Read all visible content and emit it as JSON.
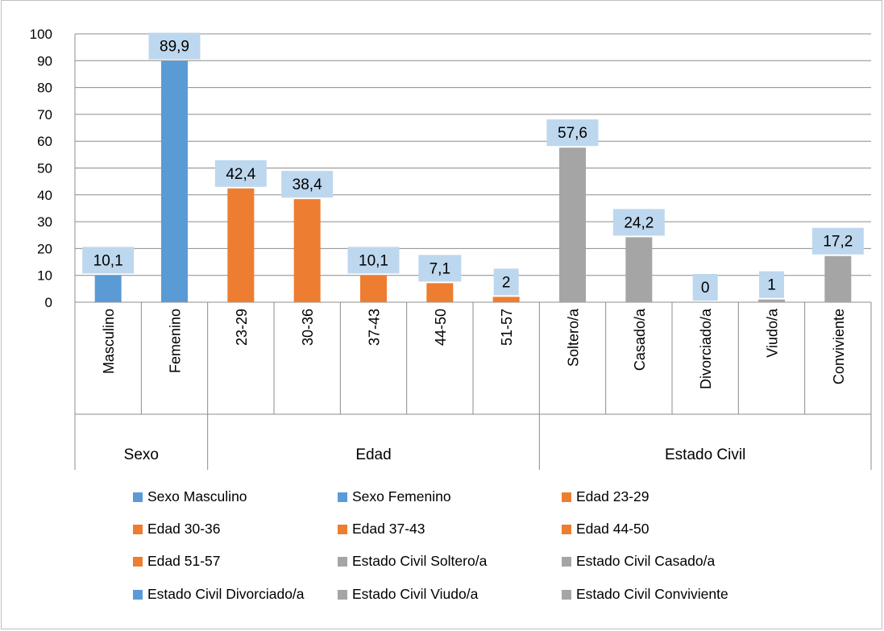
{
  "colors": {
    "blue": "#5b9bd5",
    "orange": "#ed7d31",
    "gray": "#a5a5a5",
    "label_bg": "#bdd7ee",
    "grid": "#8c8c8c"
  },
  "chart_data": {
    "type": "bar",
    "ylim": [
      0,
      100
    ],
    "yticks": [
      0,
      10,
      20,
      30,
      40,
      50,
      60,
      70,
      80,
      90,
      100
    ],
    "grid": true,
    "legend_position": "bottom",
    "groups": [
      {
        "name": "Sexo",
        "categories": [
          "Masculino",
          "Femenino"
        ],
        "values": [
          10.1,
          89.9
        ],
        "labels": [
          "10,1",
          "89,9"
        ],
        "color": "blue"
      },
      {
        "name": "Edad",
        "categories": [
          "23-29",
          "30-36",
          "37-43",
          "44-50",
          "51-57"
        ],
        "values": [
          42.4,
          38.4,
          10.1,
          7.1,
          2
        ],
        "labels": [
          "42,4",
          "38,4",
          "10,1",
          "7,1",
          "2"
        ],
        "color": "orange"
      },
      {
        "name": "Estado Civil",
        "categories": [
          "Soltero/a",
          "Casado/a",
          "Divorciado/a",
          "Viudo/a",
          "Conviviente"
        ],
        "values": [
          57.6,
          24.2,
          0,
          1,
          17.2
        ],
        "labels": [
          "57,6",
          "24,2",
          "0",
          "1",
          "17,2"
        ],
        "color": "gray"
      }
    ],
    "legend": [
      {
        "label": "Sexo Masculino",
        "color": "blue"
      },
      {
        "label": "Sexo Femenino",
        "color": "blue"
      },
      {
        "label": "Edad 23-29",
        "color": "orange"
      },
      {
        "label": "Edad 30-36",
        "color": "orange"
      },
      {
        "label": "Edad 37-43",
        "color": "orange"
      },
      {
        "label": "Edad 44-50",
        "color": "orange"
      },
      {
        "label": "Edad 51-57",
        "color": "orange"
      },
      {
        "label": "Estado Civil Soltero/a",
        "color": "gray"
      },
      {
        "label": "Estado Civil Casado/a",
        "color": "gray"
      },
      {
        "label": "Estado Civil Divorciado/a",
        "color": "blue"
      },
      {
        "label": "Estado Civil Viudo/a",
        "color": "gray"
      },
      {
        "label": "Estado Civil Conviviente",
        "color": "gray"
      }
    ]
  }
}
